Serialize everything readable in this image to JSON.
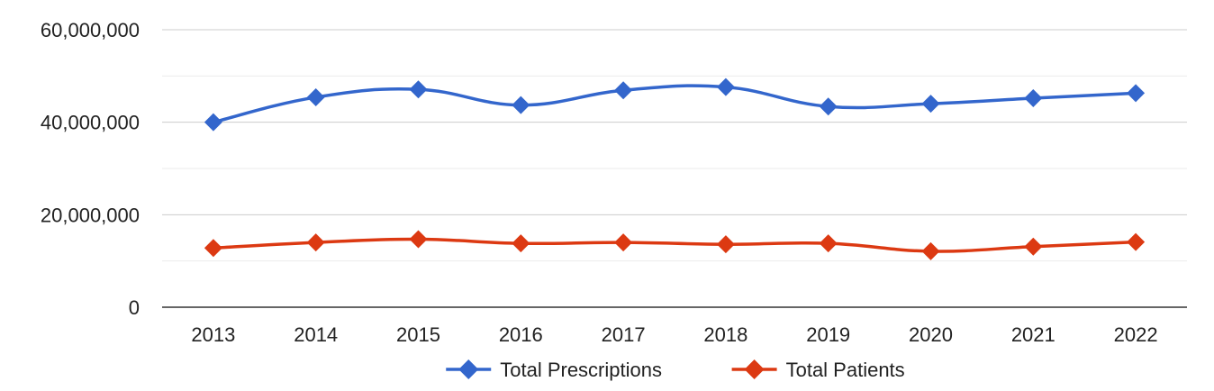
{
  "chart_data": {
    "type": "line",
    "title": "",
    "xlabel": "",
    "ylabel": "",
    "categories": [
      "2013",
      "2014",
      "2015",
      "2016",
      "2017",
      "2018",
      "2019",
      "2020",
      "2021",
      "2022"
    ],
    "ylim": [
      0,
      60000000
    ],
    "y_ticks": [
      0,
      20000000,
      40000000,
      60000000
    ],
    "y_tick_labels": [
      "0",
      "20,000,000",
      "40,000,000",
      "60,000,000"
    ],
    "grid": true,
    "legend_position": "bottom",
    "series": [
      {
        "name": "Total Prescriptions",
        "color": "#3366cc",
        "marker": "diamond",
        "values": [
          40000000,
          45400000,
          47100000,
          43700000,
          46900000,
          47600000,
          43400000,
          44000000,
          45200000,
          46300000
        ]
      },
      {
        "name": "Total Patients",
        "color": "#dc3912",
        "marker": "diamond",
        "values": [
          12800000,
          14000000,
          14700000,
          13800000,
          14000000,
          13600000,
          13800000,
          12100000,
          13100000,
          14100000
        ]
      }
    ]
  }
}
